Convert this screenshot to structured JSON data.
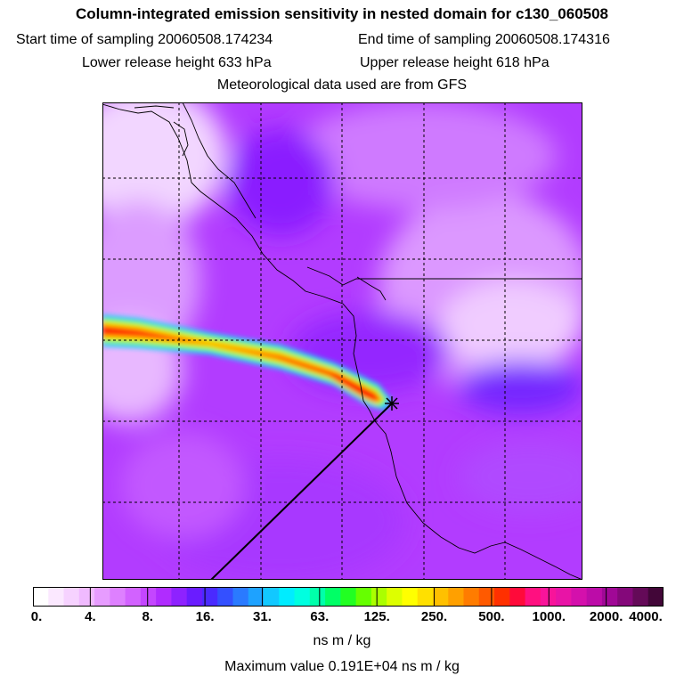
{
  "header": {
    "title": "Column-integrated emission sensitivity in nested domain for c130_060508",
    "start_label": "Start time of sampling 20060508.174234",
    "end_label": "End time of sampling 20060508.174316",
    "lower_label": "Lower release height  633 hPa",
    "upper_label": "Upper release height  618 hPa",
    "met_label": "Meteorological data used are from GFS"
  },
  "colorbar": {
    "tick_labels": [
      "0.",
      "4.",
      "8.",
      "16.",
      "31.",
      "63.",
      "125.",
      "250.",
      "500.",
      "1000.",
      "2000.",
      "4000."
    ],
    "colors": [
      "#ffffff",
      "#fbe8ff",
      "#f6d2ff",
      "#f0baff",
      "#e79cff",
      "#de80ff",
      "#d262ff",
      "#c446ff",
      "#b02cff",
      "#8e22ff",
      "#6a1cff",
      "#4a2aff",
      "#3450ff",
      "#2a7aff",
      "#1ea2ff",
      "#12c8ff",
      "#00ecff",
      "#00ffe0",
      "#00ffaa",
      "#00ff66",
      "#22ff22",
      "#66ff00",
      "#aaff00",
      "#ddff00",
      "#ffff00",
      "#ffe000",
      "#ffc000",
      "#ffa000",
      "#ff7c00",
      "#ff5a00",
      "#ff3000",
      "#ff0a3a",
      "#ff1080",
      "#f8149a",
      "#e814a6",
      "#d410ac",
      "#bc0ca8",
      "#a00896",
      "#84087a",
      "#640a58",
      "#420638"
    ],
    "units": "ns m / kg"
  },
  "footer": {
    "max_label": "Maximum value  0.191E+04 ns m / kg"
  }
}
